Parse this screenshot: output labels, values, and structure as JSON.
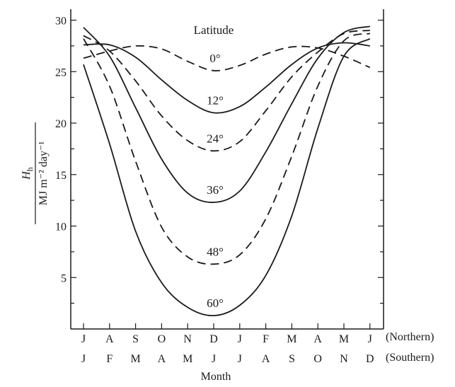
{
  "chart_data": {
    "type": "line",
    "title": "",
    "xlabel": "Month",
    "ylabel": {
      "numerator_symbol": "H",
      "numerator_subscript": "h",
      "denominator": "MJ m⁻² day⁻¹"
    },
    "ylim": [
      0,
      30
    ],
    "yticks": [
      "5",
      "10",
      "15",
      "20",
      "25",
      "30"
    ],
    "x_northern": [
      "J",
      "A",
      "S",
      "O",
      "N",
      "D",
      "J",
      "F",
      "M",
      "A",
      "M",
      "J"
    ],
    "x_southern": [
      "J",
      "F",
      "M",
      "A",
      "M",
      "J",
      "J",
      "A",
      "S",
      "O",
      "N",
      "D"
    ],
    "hemisphere_labels": {
      "northern": "(Northern)",
      "southern": "(Southern)"
    },
    "legend_title": "Latitude",
    "grid": false,
    "series": [
      {
        "name": "0°",
        "style": "dashed",
        "values": [
          26.3,
          27.0,
          27.5,
          27.2,
          26.0,
          25.1,
          25.6,
          26.7,
          27.4,
          27.3,
          26.5,
          25.4
        ]
      },
      {
        "name": "12°",
        "style": "solid",
        "values": [
          27.6,
          27.6,
          26.4,
          24.2,
          22.2,
          21.0,
          21.6,
          23.5,
          25.7,
          27.3,
          27.8,
          27.5
        ]
      },
      {
        "name": "24°",
        "style": "dashed",
        "values": [
          28.5,
          27.0,
          24.1,
          20.7,
          18.3,
          17.3,
          18.2,
          21.2,
          24.5,
          26.9,
          28.7,
          29.0
        ]
      },
      {
        "name": "36°",
        "style": "solid",
        "values": [
          29.3,
          26.5,
          21.5,
          16.5,
          13.2,
          12.3,
          13.4,
          17.2,
          21.9,
          26.3,
          28.8,
          29.4
        ]
      },
      {
        "name": "48°",
        "style": "dashed",
        "values": [
          28.2,
          23.6,
          16.3,
          9.9,
          7.0,
          6.3,
          7.2,
          10.7,
          16.8,
          23.6,
          28.0,
          28.7
        ]
      },
      {
        "name": "60°",
        "style": "solid",
        "values": [
          25.7,
          18.0,
          9.5,
          4.5,
          2.1,
          1.3,
          2.3,
          5.2,
          11.0,
          19.5,
          26.5,
          28.2
        ]
      }
    ]
  }
}
